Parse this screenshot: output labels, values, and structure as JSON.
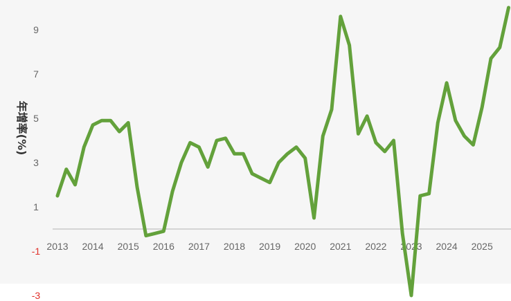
{
  "chart_data": {
    "type": "line",
    "title": "",
    "xlabel": "",
    "ylabel": "年增率(%)",
    "x_tick_labels": [
      "2013",
      "2014",
      "2015",
      "2016",
      "2017",
      "2018",
      "2019",
      "2020",
      "2021",
      "2022",
      "2023",
      "2024",
      "2025"
    ],
    "y_ticks": [
      -3,
      -1,
      1,
      3,
      5,
      7,
      9
    ],
    "ylim": [
      -3,
      10
    ],
    "grid": false,
    "legend": "none",
    "colors": {
      "line": "#63a13b",
      "negative_tick": "#e0302a",
      "tick": "#666666",
      "plot_background": "#f6f6f6",
      "zero_line": "#c8c8c8"
    },
    "x": [
      2013.0,
      2013.25,
      2013.5,
      2013.75,
      2014.0,
      2014.25,
      2014.5,
      2014.75,
      2015.0,
      2015.25,
      2015.5,
      2015.75,
      2016.0,
      2016.25,
      2016.5,
      2016.75,
      2017.0,
      2017.25,
      2017.5,
      2017.75,
      2018.0,
      2018.25,
      2018.5,
      2018.75,
      2019.0,
      2019.25,
      2019.5,
      2019.75,
      2020.0,
      2020.25,
      2020.5,
      2020.75,
      2021.0,
      2021.25,
      2021.5,
      2021.75,
      2022.0,
      2022.25,
      2022.5,
      2022.75,
      2023.0,
      2023.25,
      2023.5,
      2023.75,
      2024.0,
      2024.25,
      2024.5,
      2024.75,
      2025.0,
      2025.25,
      2025.5,
      2025.75
    ],
    "series": [
      {
        "values": [
          1.5,
          2.7,
          2.0,
          3.7,
          4.7,
          4.9,
          4.9,
          4.4,
          4.8,
          1.9,
          -0.3,
          -0.2,
          -0.1,
          1.7,
          3.0,
          3.9,
          3.7,
          2.8,
          4.0,
          4.1,
          3.4,
          3.4,
          2.5,
          2.3,
          2.1,
          3.0,
          3.4,
          3.7,
          3.2,
          0.5,
          4.2,
          5.4,
          9.6,
          8.3,
          4.3,
          5.1,
          3.9,
          3.5,
          4.0,
          -0.2,
          -3.0,
          1.5,
          1.6,
          4.8,
          6.6,
          4.9,
          4.2,
          3.8,
          5.5,
          7.7,
          8.2,
          10.0
        ]
      }
    ]
  }
}
